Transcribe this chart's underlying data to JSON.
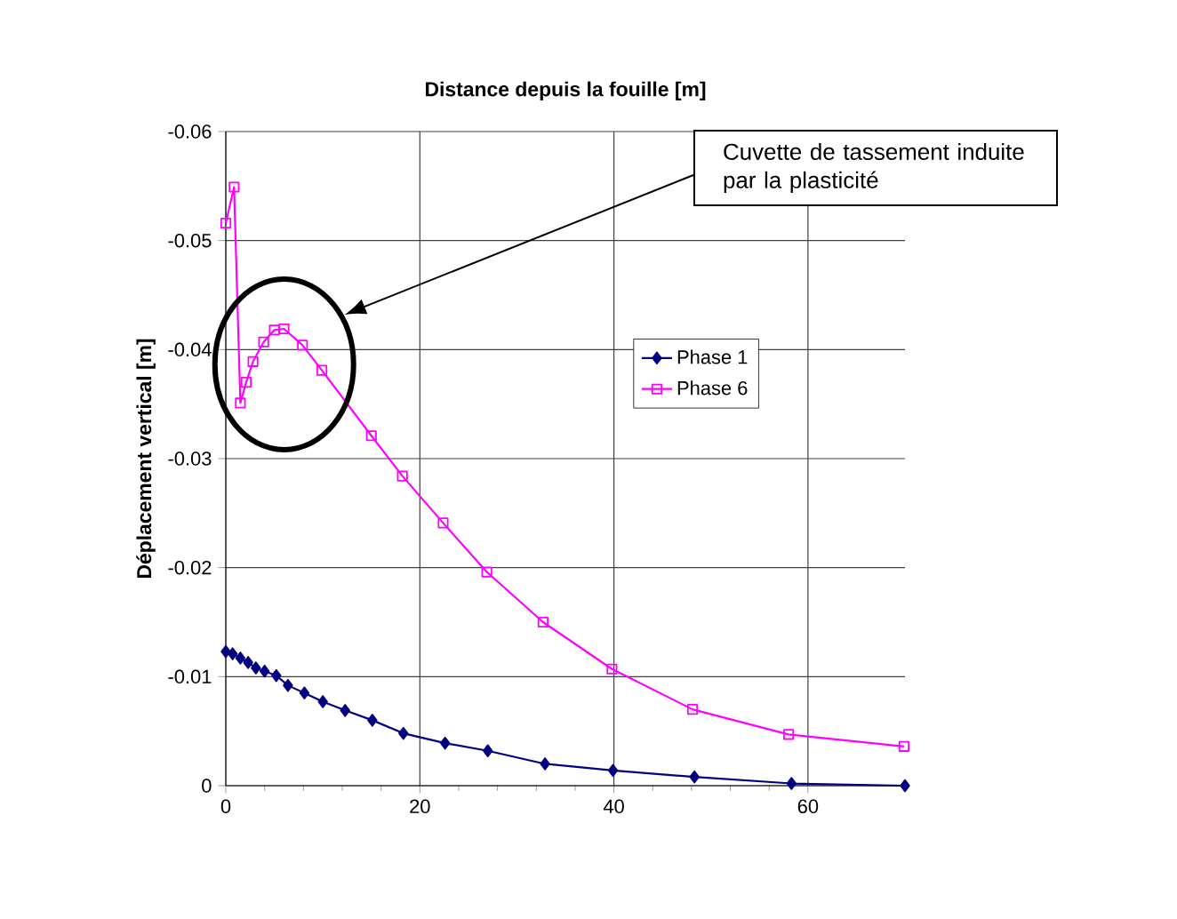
{
  "chart_data": {
    "type": "line",
    "title": "Distance depuis la fouille [m]",
    "ylabel": "Déplacement vertical [m]",
    "xlim": [
      0,
      70
    ],
    "xticks": [
      0,
      20,
      40,
      60
    ],
    "ylim": [
      0,
      -0.06
    ],
    "yticks": [
      0,
      -0.01,
      -0.02,
      -0.03,
      -0.04,
      -0.05,
      -0.06
    ],
    "grid": true,
    "legend": "right",
    "annotations": [
      "Cuvette de tassement induite par la plasticité"
    ],
    "series": [
      {
        "name": "Phase 1",
        "color": "#000080",
        "marker": "diamond",
        "x": [
          0,
          0.7,
          1.5,
          2.3,
          3.1,
          4.0,
          5.2,
          6.4,
          8.1,
          10.0,
          12.3,
          15.1,
          18.3,
          22.6,
          27.0,
          32.9,
          39.9,
          48.3,
          58.3,
          70
        ],
        "values": [
          -0.0123,
          -0.0121,
          -0.0117,
          -0.0113,
          -0.0108,
          -0.0105,
          -0.0101,
          -0.0092,
          -0.0085,
          -0.0077,
          -0.0069,
          -0.006,
          -0.0048,
          -0.0039,
          -0.0032,
          -0.002,
          -0.0014,
          -0.0008,
          -0.0002,
          0
        ]
      },
      {
        "name": "Phase 6",
        "color": "#ff00ff",
        "marker": "square",
        "x": [
          0,
          0.85,
          1.5,
          2.1,
          2.8,
          3.9,
          5.0,
          6.0,
          7.9,
          9.9,
          15.0,
          18.2,
          22.4,
          26.9,
          32.7,
          39.8,
          48.1,
          58.0,
          69.9
        ],
        "values": [
          -0.0516,
          -0.0549,
          -0.0351,
          -0.037,
          -0.0389,
          -0.0407,
          -0.0418,
          -0.0419,
          -0.0404,
          -0.0381,
          -0.0321,
          -0.0284,
          -0.0241,
          -0.0196,
          -0.015,
          -0.0107,
          -0.007,
          -0.0047,
          -0.0036
        ]
      }
    ]
  }
}
